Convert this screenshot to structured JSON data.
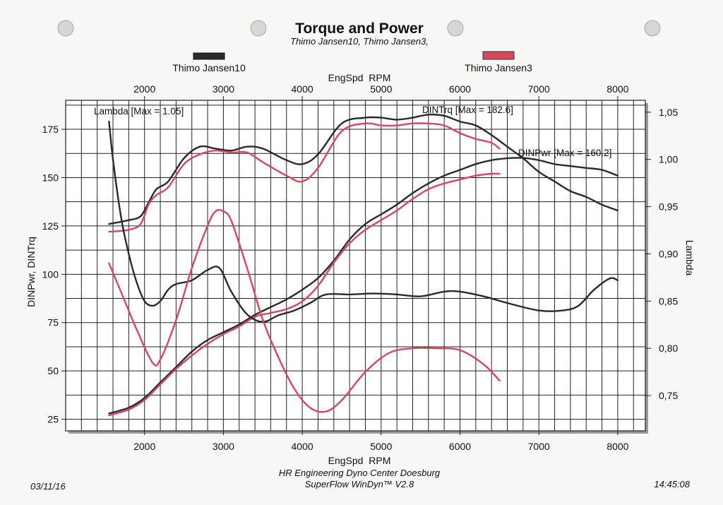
{
  "title": "Torque and Power",
  "subtitle": "Thimo Jansen10, Thimo Jansen3,",
  "legend": [
    {
      "label": "Thimo Jansen10",
      "color": "#2a2a2a"
    },
    {
      "label": "Thimo Jansen3",
      "color": "#d9475c"
    }
  ],
  "annotations": {
    "lambda_max": "Lambda [Max = 1.05]",
    "torque_max": "DINTrq [Max = 182.6]",
    "power_max": "DINPwr [Max = 160.2]"
  },
  "footer": {
    "date": "03/11/16",
    "center_line1": "HR Engineering Dyno Center Doesburg",
    "center_line2": "SuperFlow WinDyn™ V2.8",
    "time": "14:45:08"
  },
  "chart_data": {
    "type": "line",
    "xlabel": "EngSpd  RPM",
    "ylabel": "DINPwr, DINTrq",
    "y2label": "Lambda",
    "xlim": [
      1000,
      8350
    ],
    "ylim": [
      19,
      190
    ],
    "y2lim": [
      0.7126,
      1.0626
    ],
    "x_ticks": [
      2000,
      3000,
      4000,
      5000,
      6000,
      7000,
      8000
    ],
    "x_tick_labels": [
      "2000",
      "3000",
      "4000",
      "5000",
      "6000",
      "7000",
      "8000"
    ],
    "y_ticks": [
      25,
      50,
      75,
      100,
      125,
      150,
      175
    ],
    "y_tick_labels": [
      "25",
      "50",
      "75",
      "100",
      "125",
      "150",
      "175"
    ],
    "y2_ticks": [
      0.75,
      0.8,
      0.85,
      0.9,
      0.95,
      1.0,
      1.05
    ],
    "y2_tick_labels": [
      "0,75",
      "0,80",
      "0,85",
      "0,90",
      "0,95",
      "1,00",
      "1,05"
    ],
    "grid": true,
    "series": [
      {
        "name": "DINTrq",
        "run": "Thimo Jansen10",
        "axis": "left",
        "color": "#2a2a2a",
        "x": [
          1550,
          1800,
          1950,
          2050,
          2150,
          2300,
          2500,
          2700,
          2900,
          3100,
          3300,
          3500,
          3800,
          4000,
          4200,
          4500,
          4800,
          5000,
          5200,
          5400,
          5600,
          5800,
          6000,
          6200,
          6400,
          6600,
          6800,
          7000,
          7200,
          7400,
          7600,
          7800,
          8000
        ],
        "y": [
          126,
          128,
          130,
          137,
          144,
          148,
          160,
          166,
          165,
          164,
          166,
          165,
          159,
          157,
          162,
          178,
          181,
          181,
          180,
          181,
          182.6,
          182,
          179,
          177,
          172,
          166,
          160,
          153,
          148,
          143,
          140,
          136,
          133
        ]
      },
      {
        "name": "DINTrq",
        "run": "Thimo Jansen3",
        "axis": "left",
        "color": "#d9475c",
        "x": [
          1550,
          1800,
          1950,
          2050,
          2150,
          2300,
          2500,
          2700,
          2900,
          3100,
          3300,
          3500,
          3800,
          4000,
          4200,
          4500,
          4800,
          5000,
          5200,
          5400,
          5600,
          5800,
          6000,
          6200,
          6400,
          6500
        ],
        "y": [
          122,
          123,
          126,
          136,
          141,
          145,
          157,
          162,
          164,
          163,
          163,
          158,
          151,
          148,
          155,
          174,
          178,
          177,
          177,
          178,
          178,
          177,
          173,
          170,
          168,
          165
        ]
      },
      {
        "name": "DINPwr",
        "run": "Thimo Jansen10",
        "axis": "left",
        "color": "#2a2a2a",
        "x": [
          1550,
          1800,
          2000,
          2200,
          2400,
          2600,
          2800,
          3000,
          3200,
          3400,
          3600,
          3800,
          4000,
          4200,
          4400,
          4600,
          4800,
          5000,
          5200,
          5400,
          5600,
          5800,
          6000,
          6200,
          6400,
          6600,
          6800,
          7000,
          7200,
          7400,
          7600,
          7800,
          8000
        ],
        "y": [
          28,
          31,
          36,
          44,
          52,
          60,
          66,
          70,
          74,
          79,
          83,
          87,
          92,
          98,
          107,
          118,
          126,
          131,
          136,
          142,
          147,
          151,
          154,
          157,
          159,
          160,
          160.2,
          159,
          157,
          156,
          155,
          154,
          151
        ]
      },
      {
        "name": "DINPwr",
        "run": "Thimo Jansen3",
        "axis": "left",
        "color": "#d9475c",
        "x": [
          1550,
          1800,
          2000,
          2200,
          2400,
          2600,
          2800,
          3000,
          3200,
          3400,
          3600,
          3800,
          4000,
          4200,
          4400,
          4600,
          4800,
          5000,
          5200,
          5400,
          5600,
          5800,
          6000,
          6200,
          6400,
          6500
        ],
        "y": [
          27,
          30,
          35,
          43,
          51,
          58,
          64,
          69,
          73,
          78,
          80,
          82,
          86,
          94,
          106,
          116,
          123,
          128,
          133,
          139,
          144,
          147,
          149,
          151,
          152,
          152
        ]
      },
      {
        "name": "Lambda",
        "run": "Thimo Jansen10",
        "axis": "right",
        "color": "#2a2a2a",
        "x": [
          1550,
          1600,
          1700,
          1800,
          1900,
          2000,
          2100,
          2200,
          2300,
          2400,
          2600,
          2800,
          2950,
          3100,
          3300,
          3500,
          3700,
          3900,
          4100,
          4300,
          4600,
          4900,
          5200,
          5500,
          5800,
          6000,
          6300,
          6600,
          7000,
          7300,
          7500,
          7700,
          7900,
          8000
        ],
        "y": [
          1.04,
          1.0,
          0.94,
          0.9,
          0.87,
          0.85,
          0.845,
          0.85,
          0.862,
          0.868,
          0.872,
          0.883,
          0.885,
          0.86,
          0.836,
          0.828,
          0.835,
          0.84,
          0.848,
          0.857,
          0.857,
          0.858,
          0.857,
          0.855,
          0.86,
          0.86,
          0.855,
          0.848,
          0.84,
          0.84,
          0.845,
          0.862,
          0.874,
          0.872
        ]
      },
      {
        "name": "Lambda",
        "run": "Thimo Jansen3",
        "axis": "right",
        "color": "#d9475c",
        "x": [
          1550,
          1700,
          1900,
          2100,
          2200,
          2400,
          2600,
          2800,
          2900,
          3000,
          3100,
          3300,
          3500,
          3700,
          3900,
          4100,
          4300,
          4500,
          4800,
          5100,
          5400,
          5700,
          6000,
          6300,
          6500
        ],
        "y": [
          0.89,
          0.86,
          0.82,
          0.785,
          0.788,
          0.83,
          0.885,
          0.93,
          0.945,
          0.945,
          0.935,
          0.885,
          0.83,
          0.79,
          0.757,
          0.737,
          0.733,
          0.745,
          0.775,
          0.795,
          0.8,
          0.8,
          0.798,
          0.783,
          0.766
        ]
      }
    ]
  }
}
